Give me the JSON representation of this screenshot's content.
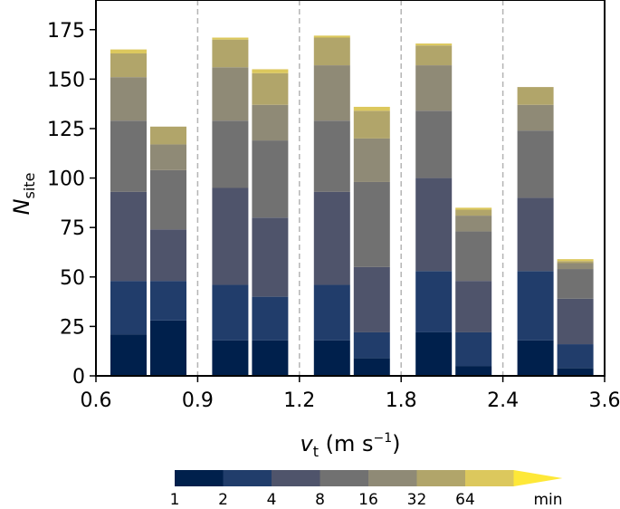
{
  "chart_data": {
    "type": "bar",
    "stacked": true,
    "ylabel_main": "N",
    "ylabel_sub": "site",
    "xlabel_main": "v",
    "xlabel_sub": "t",
    "xlabel_unit_pre": " (m s",
    "xlabel_unit_sup": "−1",
    "xlabel_unit_post": ")",
    "ylim": [
      0,
      190
    ],
    "yticks": [
      0,
      25,
      50,
      75,
      100,
      125,
      150,
      175
    ],
    "x_tick_labels": [
      "0.6",
      "0.9",
      "1.2",
      "1.8",
      "2.4",
      "3.6"
    ],
    "segment_colors": [
      "#00204c",
      "#213d6b",
      "#4f546b",
      "#717171",
      "#8f8a76",
      "#b1a56a",
      "#dcc85d",
      "#fee838"
    ],
    "colorbar": {
      "labels": [
        "1",
        "2",
        "4",
        "8",
        "16",
        "32",
        "64"
      ],
      "unit": "min",
      "colors": [
        "#00204c",
        "#213d6b",
        "#4f546b",
        "#717171",
        "#8f8a76",
        "#b1a56a",
        "#dcc85d"
      ],
      "extend_color": "#fee838"
    },
    "bars": [
      {
        "bin": "0.6–0.9",
        "cumulative": [
          21,
          48,
          93,
          129,
          151,
          163,
          165
        ]
      },
      {
        "bin": "0.6–0.9",
        "cumulative": [
          28,
          48,
          74,
          104,
          117,
          126,
          126
        ]
      },
      {
        "bin": "0.9–1.2",
        "cumulative": [
          18,
          46,
          95,
          129,
          156,
          170,
          171
        ]
      },
      {
        "bin": "0.9–1.2",
        "cumulative": [
          18,
          40,
          80,
          119,
          137,
          153,
          155
        ]
      },
      {
        "bin": "1.2–1.8",
        "cumulative": [
          18,
          46,
          93,
          129,
          157,
          171,
          172
        ]
      },
      {
        "bin": "1.2–1.8",
        "cumulative": [
          9,
          22,
          55,
          98,
          120,
          134,
          136
        ]
      },
      {
        "bin": "1.8–2.4",
        "cumulative": [
          22,
          53,
          100,
          134,
          157,
          167,
          168
        ]
      },
      {
        "bin": "1.8–2.4",
        "cumulative": [
          5,
          22,
          48,
          73,
          81,
          84,
          85
        ]
      },
      {
        "bin": "2.4–3.6",
        "cumulative": [
          18,
          53,
          90,
          124,
          137,
          146,
          146
        ]
      },
      {
        "bin": "2.4–3.6",
        "cumulative": [
          4,
          16,
          39,
          54,
          57,
          58,
          59
        ]
      }
    ]
  }
}
